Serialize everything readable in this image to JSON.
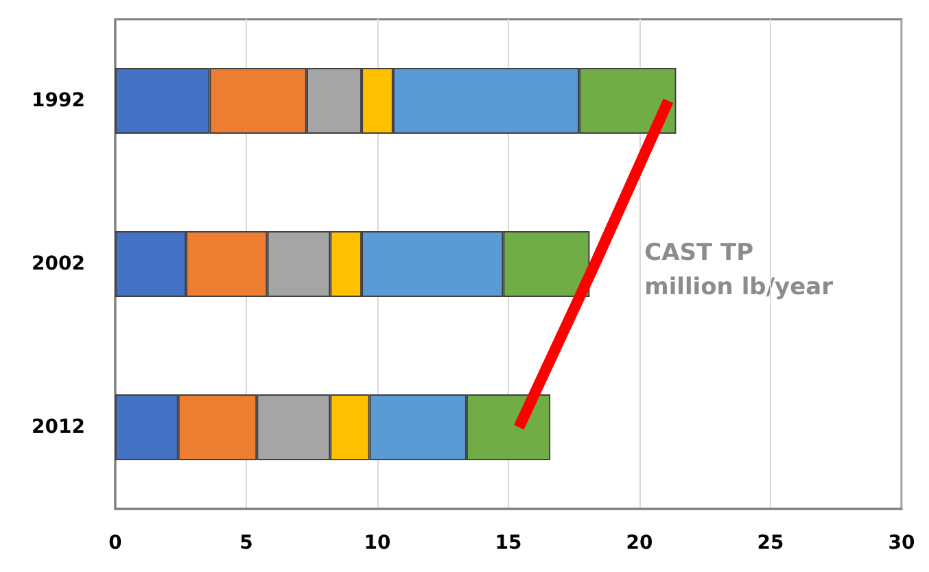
{
  "chart_data": {
    "type": "bar",
    "orientation": "horizontal",
    "stacked": true,
    "categories": [
      "1992",
      "2002",
      "2012"
    ],
    "series": [
      {
        "color": "#4472c4",
        "values": [
          3.6,
          2.7,
          2.4
        ]
      },
      {
        "color": "#ed7d31",
        "values": [
          3.7,
          3.1,
          3.0
        ]
      },
      {
        "color": "#a5a5a5",
        "values": [
          2.1,
          2.4,
          2.8
        ]
      },
      {
        "color": "#ffc000",
        "values": [
          1.2,
          1.2,
          1.5
        ]
      },
      {
        "color": "#5b9bd5",
        "values": [
          7.1,
          5.4,
          3.7
        ]
      },
      {
        "color": "#70ad47",
        "values": [
          3.7,
          3.3,
          3.2
        ]
      },
      {
        "type": "line",
        "color": "#ff0000",
        "values": [
          21.1,
          18.3,
          15.4
        ]
      }
    ],
    "xlim": [
      0,
      30
    ],
    "xticks": [
      0,
      5,
      10,
      15,
      20,
      25,
      30
    ],
    "grid": "x",
    "marker": "none",
    "line_style": "solid",
    "annotations": [
      "CAST TP\nmillion lb/year"
    ]
  }
}
